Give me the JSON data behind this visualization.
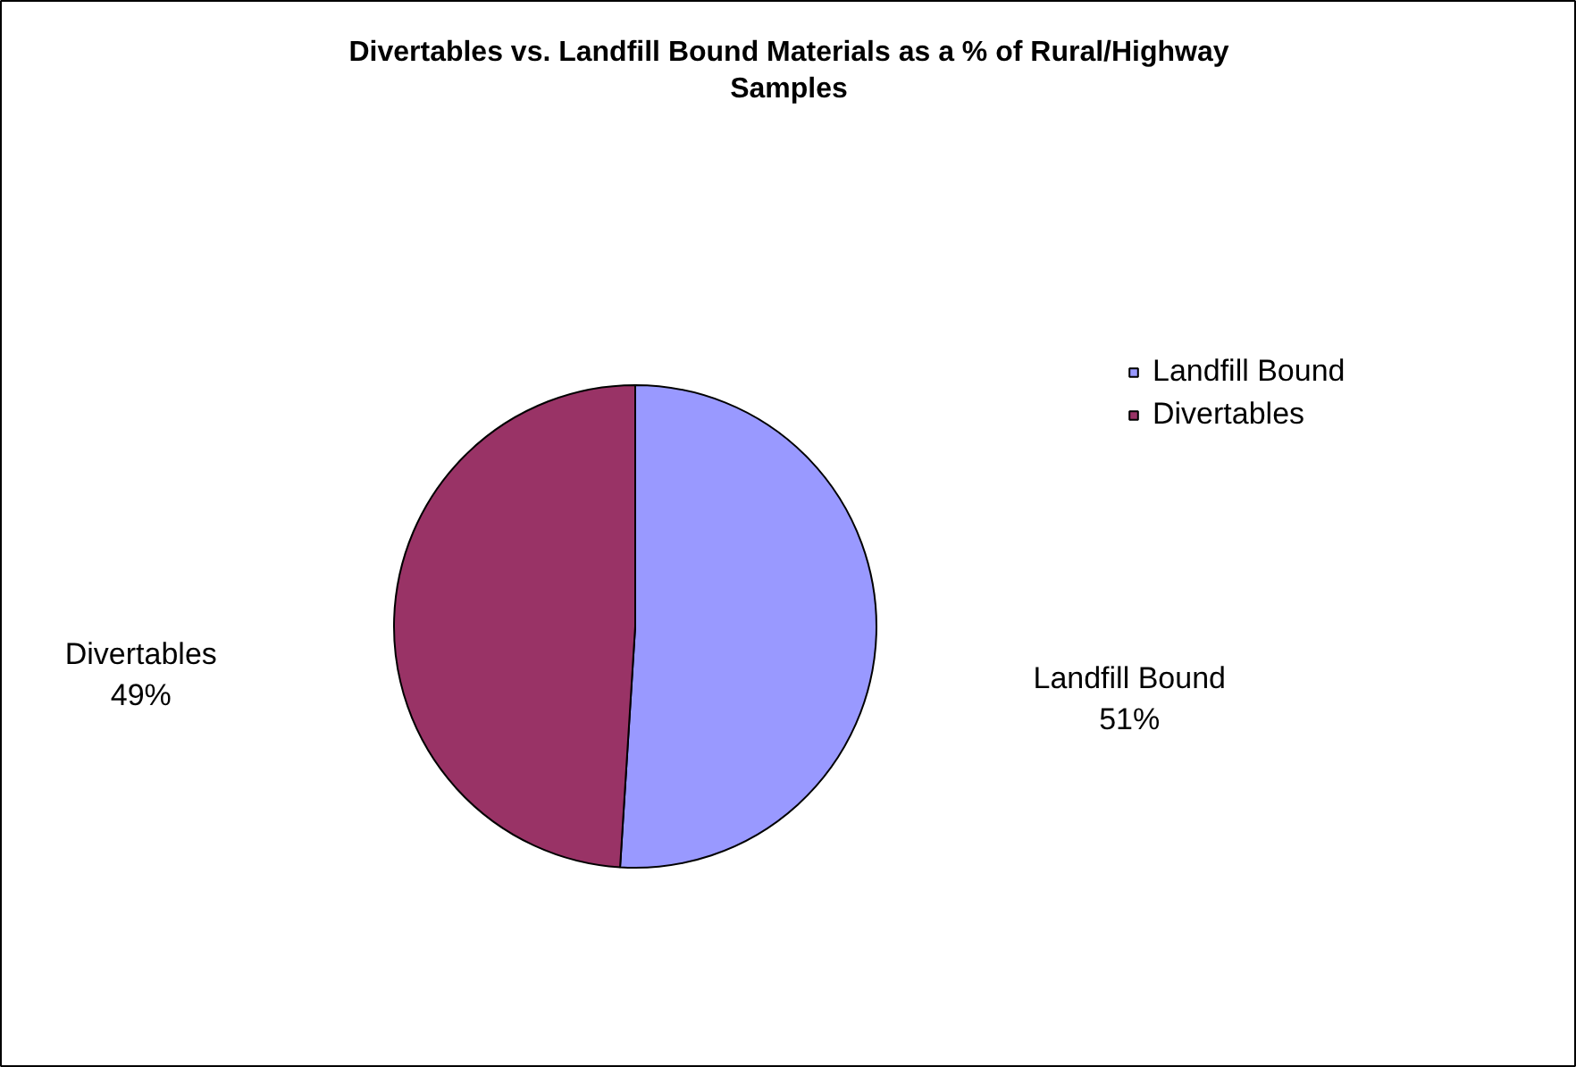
{
  "chart_data": {
    "type": "pie",
    "title": "Divertables vs. Landfill Bound Materials as a % of Rural/Highway\nSamples",
    "categories": [
      "Landfill Bound",
      "Divertables"
    ],
    "values": [
      51,
      49
    ],
    "colors": [
      "#9999ff",
      "#993366"
    ],
    "value_labels": [
      "51%",
      "49%"
    ],
    "legend": "right"
  }
}
